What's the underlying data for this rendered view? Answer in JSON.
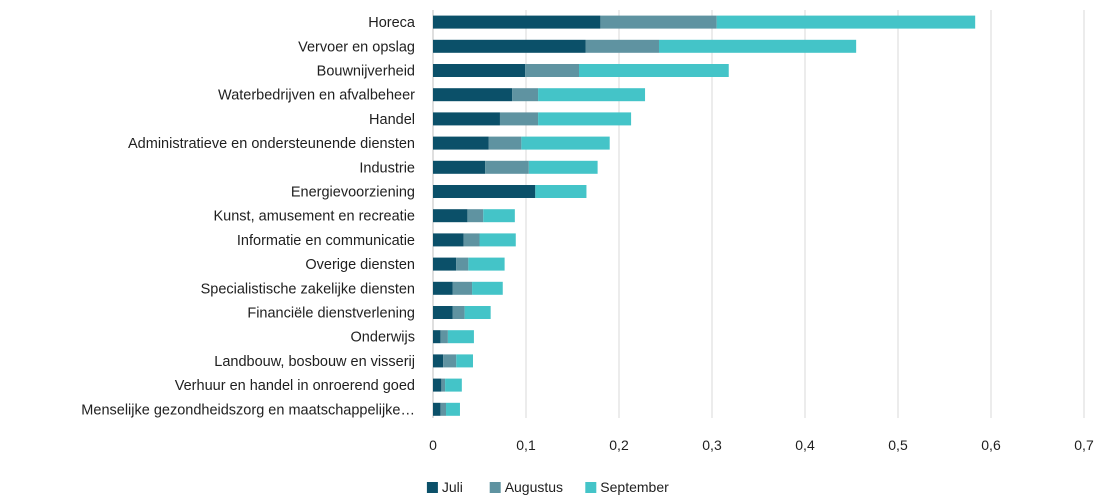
{
  "chart_data": {
    "type": "bar",
    "orientation": "horizontal",
    "stacked": true,
    "categories": [
      "Horeca",
      "Vervoer en opslag",
      "Bouwnijverheid",
      "Waterbedrijven en afvalbeheer",
      "Handel",
      "Administratieve en ondersteunende diensten",
      "Industrie",
      "Energievoorziening",
      "Kunst, amusement en recreatie",
      "Informatie en communicatie",
      "Overige diensten",
      "Specialistische zakelijke diensten",
      "Financiële dienstverlening",
      "Onderwijs",
      "Landbouw, bosbouw en visserij",
      "Verhuur en handel in onroerend goed",
      "Menselijke gezondheidszorg en maatschappelijke…"
    ],
    "series": [
      {
        "name": "Juli",
        "color": "#0b5069",
        "values": [
          0.18,
          0.164,
          0.099,
          0.085,
          0.072,
          0.06,
          0.056,
          0.11,
          0.037,
          0.033,
          0.025,
          0.021,
          0.021,
          0.008,
          0.011,
          0.009,
          0.008
        ]
      },
      {
        "name": "Augustus",
        "color": "#5f93a1",
        "values": [
          0.125,
          0.079,
          0.058,
          0.028,
          0.041,
          0.035,
          0.047,
          0.0,
          0.017,
          0.017,
          0.013,
          0.021,
          0.013,
          0.008,
          0.014,
          0.004,
          0.006
        ]
      },
      {
        "name": "September",
        "color": "#44c4c8",
        "values": [
          0.278,
          0.212,
          0.161,
          0.115,
          0.1,
          0.095,
          0.074,
          0.055,
          0.034,
          0.039,
          0.039,
          0.033,
          0.028,
          0.028,
          0.018,
          0.018,
          0.015
        ]
      }
    ],
    "xlim": [
      0,
      0.7
    ],
    "xticks": [
      "0",
      "0,1",
      "0,2",
      "0,3",
      "0,4",
      "0,5",
      "0,6",
      "0,7"
    ],
    "grid": true,
    "legend": "bottom-center"
  }
}
